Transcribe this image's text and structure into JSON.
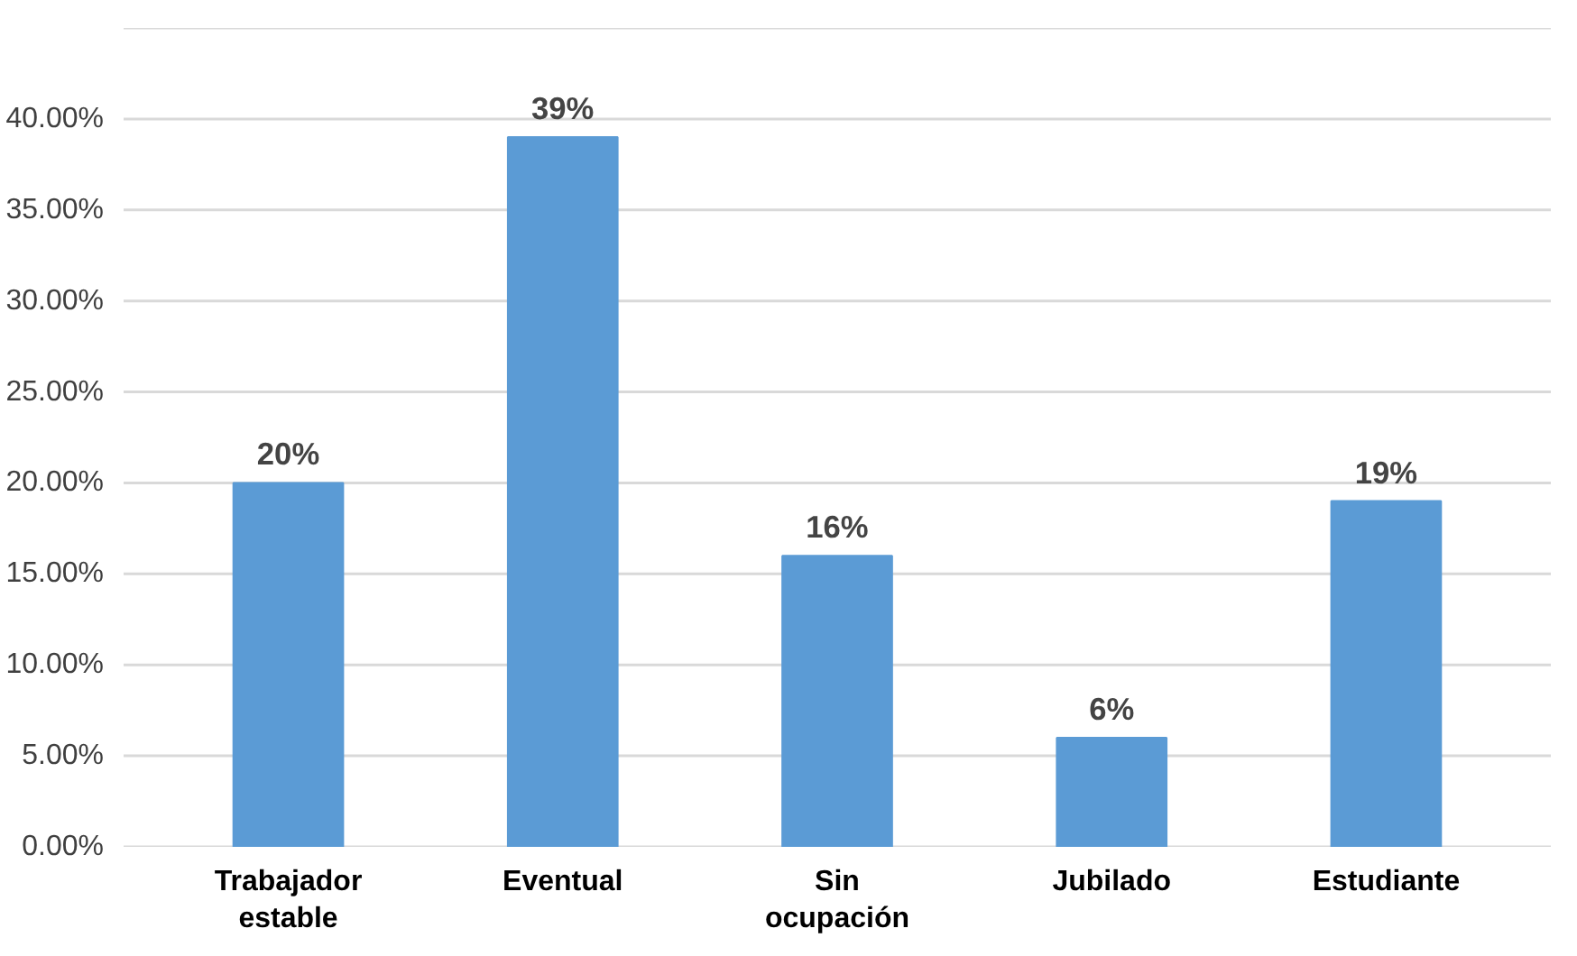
{
  "chart_data": {
    "type": "bar",
    "categories": [
      "Trabajador estable",
      "Eventual",
      "Sin ocupación",
      "Jubilado",
      "Estudiante"
    ],
    "values": [
      20,
      39,
      16,
      6,
      19
    ],
    "value_labels": [
      "20%",
      "39%",
      "16%",
      "6%",
      "19%"
    ],
    "color": "#5b9bd5",
    "ylim": [
      0,
      45
    ],
    "yticks": [
      {
        "value": 0,
        "label": "0.00%"
      },
      {
        "value": 5,
        "label": "5.00%"
      },
      {
        "value": 10,
        "label": "10.00%"
      },
      {
        "value": 15,
        "label": "15.00%"
      },
      {
        "value": 20,
        "label": "20.00%"
      },
      {
        "value": 25,
        "label": "25.00%"
      },
      {
        "value": 30,
        "label": "30.00%"
      },
      {
        "value": 35,
        "label": "35.00%"
      },
      {
        "value": 40,
        "label": "40.00%"
      },
      {
        "value": 45,
        "label": null
      }
    ],
    "grid": "y"
  }
}
